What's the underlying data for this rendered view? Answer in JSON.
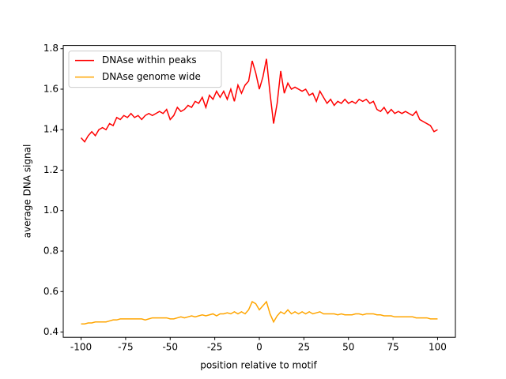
{
  "chart_data": {
    "type": "line",
    "xlabel": "position relative to motif",
    "ylabel": "average DNA signal",
    "x": [
      -100,
      -98,
      -96,
      -94,
      -92,
      -90,
      -88,
      -86,
      -84,
      -82,
      -80,
      -78,
      -76,
      -74,
      -72,
      -70,
      -68,
      -66,
      -64,
      -62,
      -60,
      -58,
      -56,
      -54,
      -52,
      -50,
      -48,
      -46,
      -44,
      -42,
      -40,
      -38,
      -36,
      -34,
      -32,
      -30,
      -28,
      -26,
      -24,
      -22,
      -20,
      -18,
      -16,
      -14,
      -12,
      -10,
      -8,
      -6,
      -4,
      -2,
      0,
      2,
      4,
      6,
      8,
      10,
      12,
      14,
      16,
      18,
      20,
      22,
      24,
      26,
      28,
      30,
      32,
      34,
      36,
      38,
      40,
      42,
      44,
      46,
      48,
      50,
      52,
      54,
      56,
      58,
      60,
      62,
      64,
      66,
      68,
      70,
      72,
      74,
      76,
      78,
      80,
      82,
      84,
      86,
      88,
      90,
      92,
      94,
      96,
      98,
      100
    ],
    "series": [
      {
        "name": "DNAse within peaks",
        "color": "#ff0000",
        "values": [
          1.36,
          1.34,
          1.37,
          1.39,
          1.37,
          1.4,
          1.41,
          1.4,
          1.43,
          1.42,
          1.46,
          1.45,
          1.47,
          1.46,
          1.48,
          1.46,
          1.47,
          1.45,
          1.47,
          1.48,
          1.47,
          1.48,
          1.49,
          1.48,
          1.5,
          1.45,
          1.47,
          1.51,
          1.49,
          1.5,
          1.52,
          1.51,
          1.54,
          1.53,
          1.56,
          1.51,
          1.57,
          1.55,
          1.59,
          1.56,
          1.59,
          1.55,
          1.6,
          1.54,
          1.62,
          1.58,
          1.62,
          1.64,
          1.74,
          1.68,
          1.6,
          1.66,
          1.75,
          1.58,
          1.43,
          1.53,
          1.69,
          1.58,
          1.63,
          1.6,
          1.61,
          1.6,
          1.59,
          1.6,
          1.57,
          1.58,
          1.54,
          1.59,
          1.56,
          1.53,
          1.55,
          1.52,
          1.54,
          1.53,
          1.55,
          1.53,
          1.54,
          1.53,
          1.55,
          1.54,
          1.55,
          1.53,
          1.54,
          1.5,
          1.49,
          1.51,
          1.48,
          1.5,
          1.48,
          1.49,
          1.48,
          1.49,
          1.48,
          1.47,
          1.49,
          1.45,
          1.44,
          1.43,
          1.42,
          1.39,
          1.4
        ]
      },
      {
        "name": "DNAse genome wide",
        "color": "#ffa500",
        "values": [
          0.44,
          0.44,
          0.445,
          0.445,
          0.45,
          0.45,
          0.45,
          0.45,
          0.455,
          0.46,
          0.46,
          0.465,
          0.465,
          0.465,
          0.465,
          0.465,
          0.465,
          0.465,
          0.46,
          0.465,
          0.47,
          0.47,
          0.47,
          0.47,
          0.47,
          0.465,
          0.465,
          0.47,
          0.475,
          0.47,
          0.475,
          0.48,
          0.475,
          0.48,
          0.485,
          0.48,
          0.485,
          0.49,
          0.48,
          0.49,
          0.49,
          0.495,
          0.49,
          0.5,
          0.49,
          0.5,
          0.49,
          0.51,
          0.55,
          0.54,
          0.51,
          0.53,
          0.55,
          0.49,
          0.45,
          0.48,
          0.5,
          0.49,
          0.51,
          0.49,
          0.5,
          0.49,
          0.5,
          0.49,
          0.5,
          0.49,
          0.495,
          0.5,
          0.49,
          0.49,
          0.49,
          0.49,
          0.485,
          0.49,
          0.485,
          0.485,
          0.485,
          0.49,
          0.49,
          0.485,
          0.49,
          0.49,
          0.49,
          0.485,
          0.485,
          0.48,
          0.48,
          0.48,
          0.475,
          0.475,
          0.475,
          0.475,
          0.475,
          0.475,
          0.47,
          0.47,
          0.47,
          0.47,
          0.465,
          0.465,
          0.465
        ]
      }
    ],
    "xlim": [
      -110,
      110
    ],
    "ylim": [
      0.374,
      1.816
    ],
    "xticks": [
      -100,
      -75,
      -50,
      -25,
      0,
      25,
      50,
      75,
      100
    ],
    "yticks": [
      0.4,
      0.6,
      0.8,
      {
        "value": 1,
        "label": "1.0"
      },
      1.2,
      1.4,
      1.6,
      1.8
    ],
    "legend": "upper left"
  }
}
